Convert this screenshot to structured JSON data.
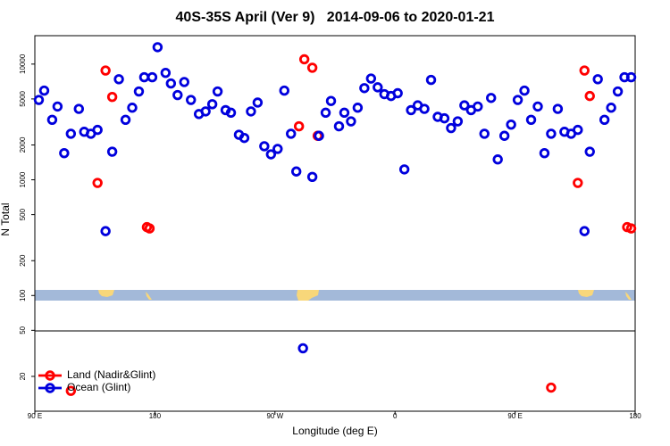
{
  "chart_data": {
    "type": "scatter",
    "title": "40S-35S April (Ver 9)   2014-09-06 to 2020-01-21",
    "x_label": "Longitude (deg E)",
    "y_label": "N Total",
    "xlim": [
      90,
      540
    ],
    "xticks": [
      {
        "value": 90,
        "label": "90 E"
      },
      {
        "value": 180,
        "label": "180"
      },
      {
        "value": 270,
        "label": "90 W"
      },
      {
        "value": 360,
        "label": "0"
      },
      {
        "value": 450,
        "label": "90 E"
      },
      {
        "value": 540,
        "label": "180"
      }
    ],
    "ylim": [
      10,
      17600
    ],
    "yticks": [
      20,
      50,
      100,
      200,
      500,
      1000,
      2000,
      5000,
      10000
    ],
    "y_scale": "log",
    "legend": "bottom-left",
    "series": [
      {
        "name": "Land (Nadir&Glint)",
        "color": "#ff0000",
        "x": [
          137,
          143,
          148,
          174,
          176,
          288,
          292,
          298,
          302,
          117,
          477,
          497,
          502,
          506,
          534,
          537
        ],
        "values": [
          940,
          8800,
          5200,
          390,
          380,
          2900,
          11000,
          9300,
          2400,
          15,
          16,
          940,
          8800,
          5300,
          390,
          380
        ]
      },
      {
        "name": "Ocean (Glint)",
        "color": "#0000dd",
        "x": [
          93,
          97,
          103,
          107,
          112,
          117,
          123,
          127,
          132,
          137,
          143,
          148,
          153,
          158,
          163,
          168,
          172,
          178,
          182,
          188,
          192,
          197,
          202,
          207,
          213,
          218,
          223,
          227,
          233,
          237,
          243,
          247,
          252,
          257,
          262,
          267,
          272,
          277,
          282,
          286,
          291,
          298,
          303,
          308,
          312,
          318,
          322,
          327,
          332,
          337,
          342,
          347,
          352,
          357,
          362,
          367,
          372,
          377,
          382,
          387,
          392,
          397,
          402,
          407,
          412,
          417,
          422,
          427,
          432,
          437,
          442,
          447,
          452,
          457,
          462,
          467,
          472,
          477,
          482,
          487,
          492,
          497,
          502,
          506,
          512,
          517,
          522,
          527,
          532,
          537
        ],
        "values": [
          4900,
          5900,
          3300,
          4300,
          1700,
          2500,
          4100,
          2600,
          2500,
          2700,
          360,
          1750,
          7400,
          3300,
          4200,
          5800,
          7700,
          7700,
          14000,
          8400,
          6800,
          5400,
          7000,
          4900,
          3700,
          3900,
          4500,
          5800,
          4000,
          3800,
          2450,
          2300,
          3900,
          4650,
          1950,
          1660,
          1850,
          5900,
          2500,
          1180,
          35,
          1060,
          2400,
          3800,
          4800,
          2900,
          3800,
          3200,
          4200,
          6200,
          7500,
          6300,
          5500,
          5300,
          5600,
          1230,
          4000,
          4400,
          4100,
          7300,
          3500,
          3400,
          2800,
          3200,
          4400,
          4000,
          4300,
          2500,
          5100,
          1500,
          2400,
          3000,
          4900,
          5900,
          3300,
          4300,
          1700,
          2500,
          4100,
          2600,
          2500,
          2700,
          360,
          1750,
          7400,
          3300,
          4200,
          5800,
          7700,
          7700
        ]
      }
    ]
  }
}
